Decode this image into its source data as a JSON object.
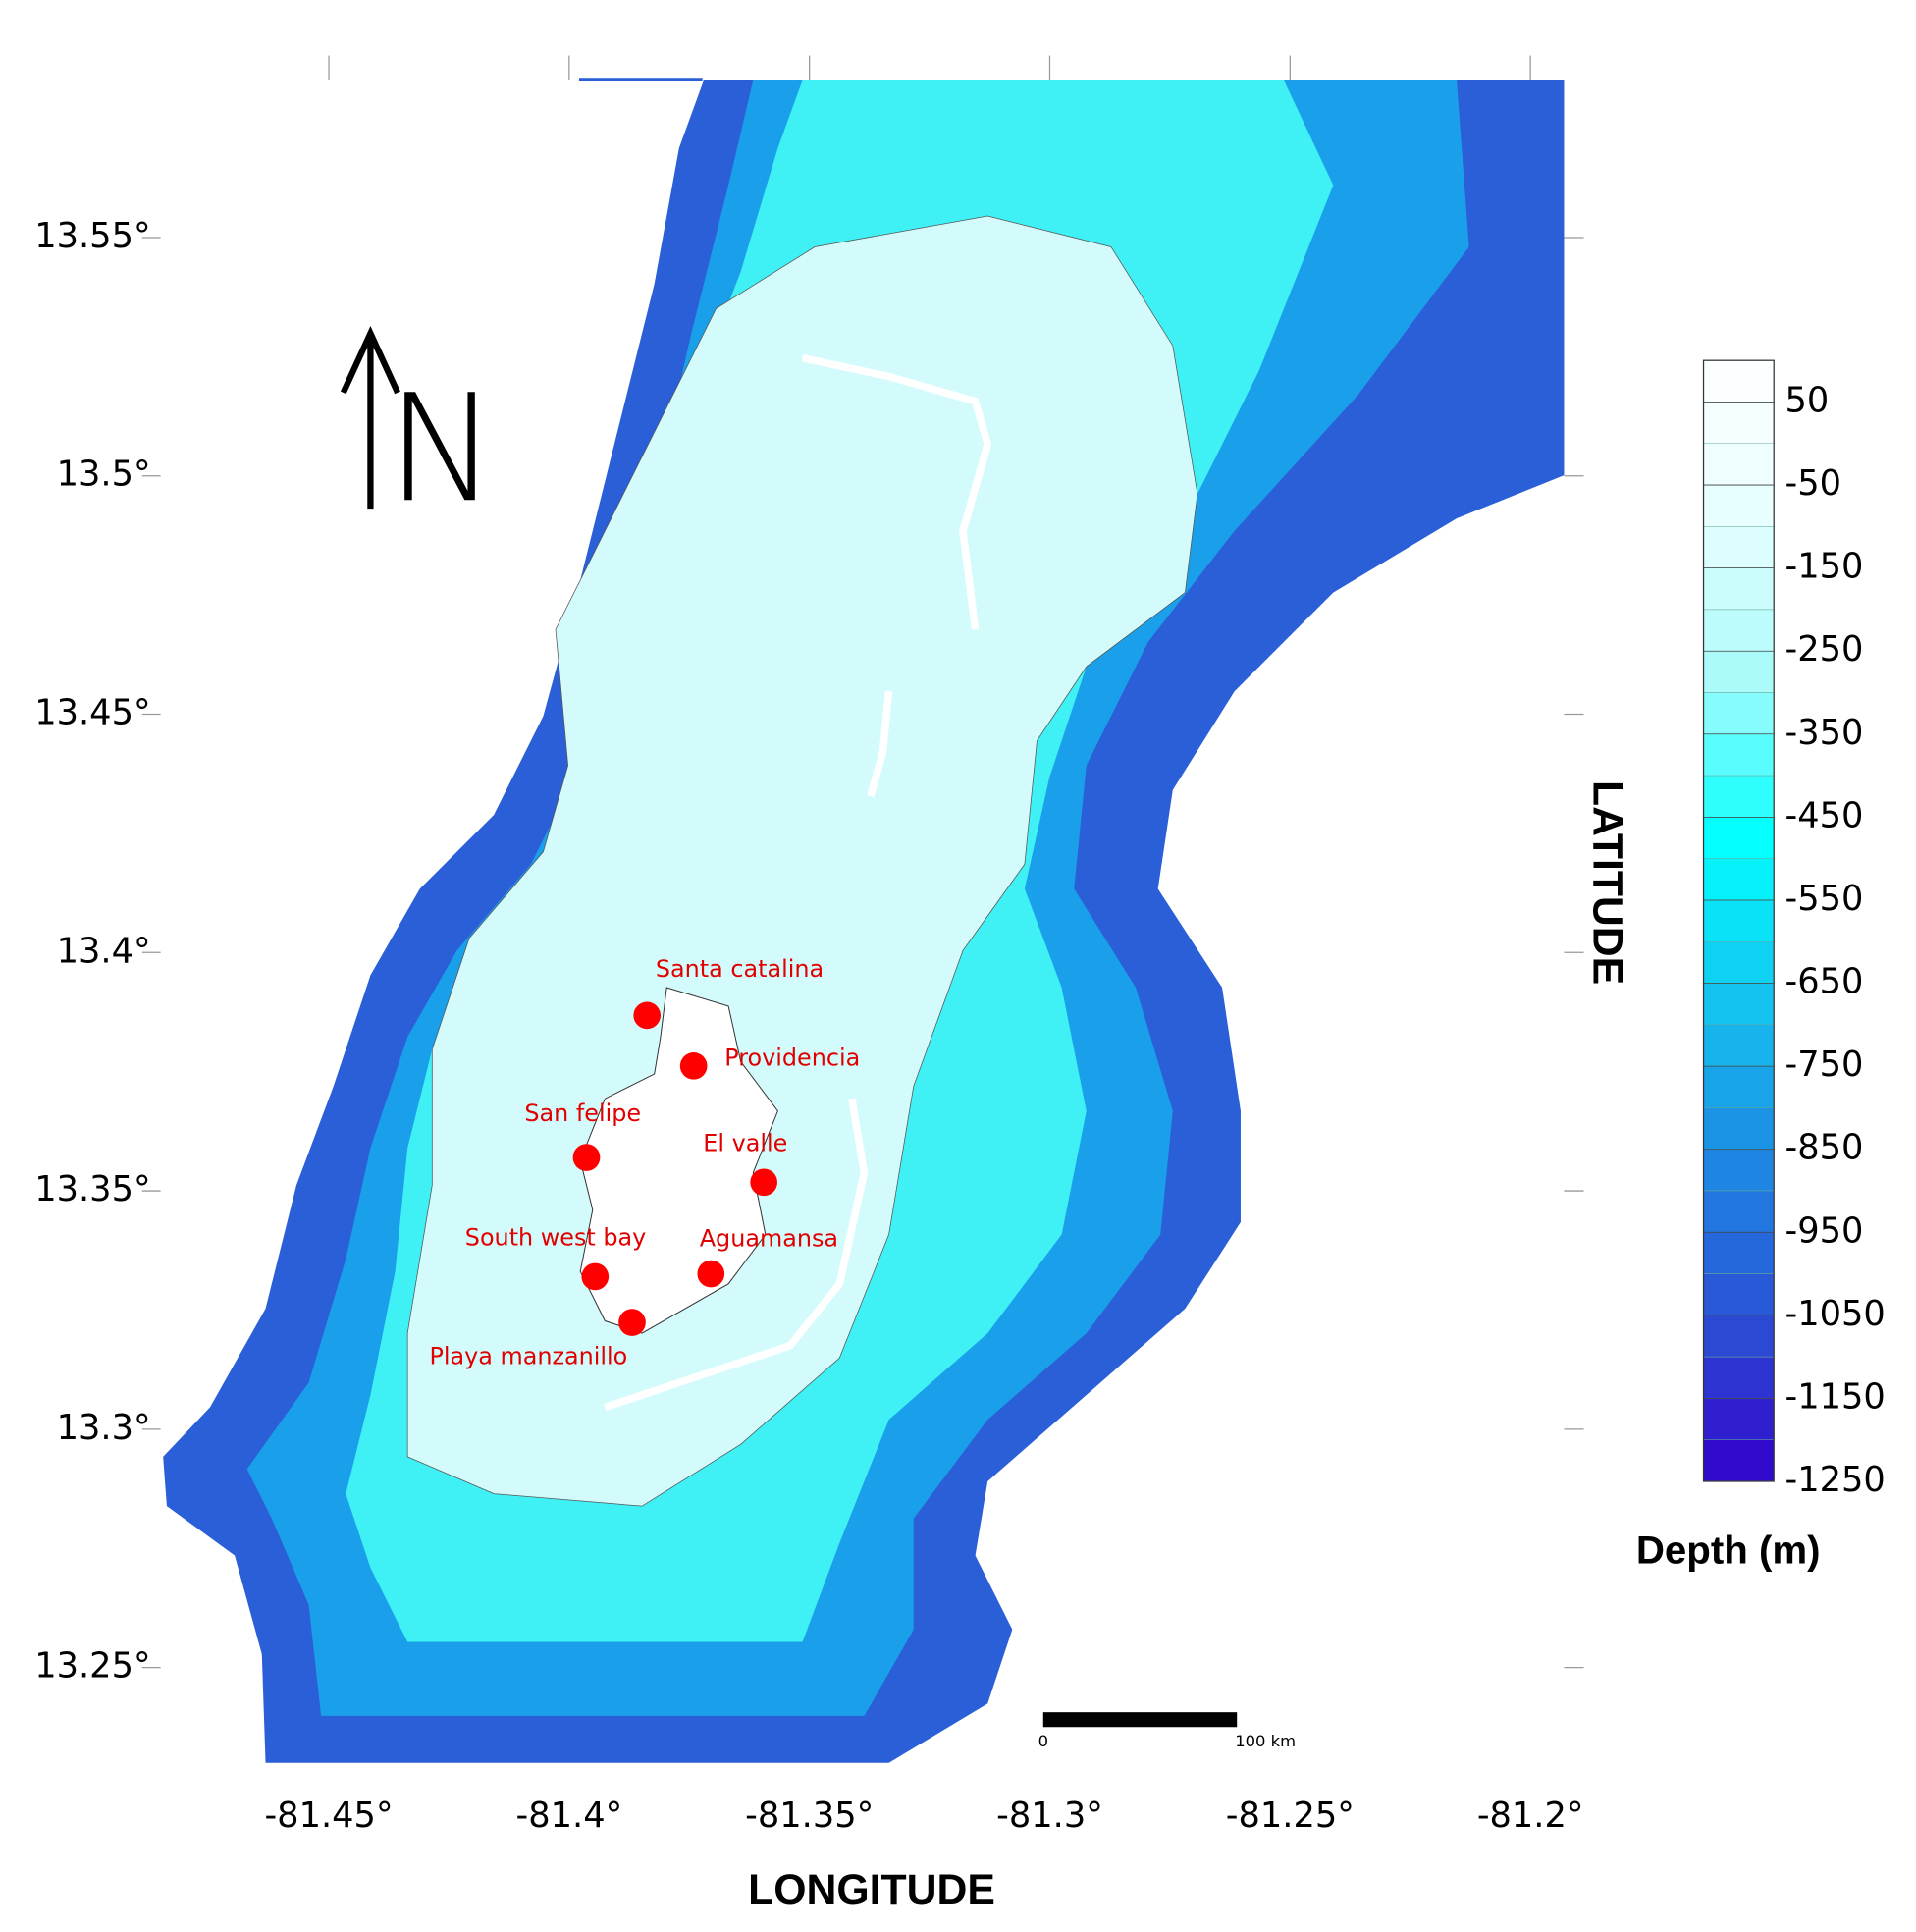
{
  "map": {
    "xlim": [
      -81.485,
      -81.193
    ],
    "ylim": [
      13.23,
      13.583
    ],
    "xticks": [
      {
        "value": -81.45,
        "label": "-81.45°"
      },
      {
        "value": -81.4,
        "label": "-81.4°"
      },
      {
        "value": -81.35,
        "label": "-81.35°"
      },
      {
        "value": -81.3,
        "label": "-81.3°"
      },
      {
        "value": -81.25,
        "label": "-81.25°"
      },
      {
        "value": -81.2,
        "label": "-81.2°"
      }
    ],
    "yticks": [
      {
        "value": 13.55,
        "label": "13.55°"
      },
      {
        "value": 13.5,
        "label": "13.5°"
      },
      {
        "value": 13.45,
        "label": "13.45°"
      },
      {
        "value": 13.4,
        "label": "13.4°"
      },
      {
        "value": 13.35,
        "label": "13.35°"
      },
      {
        "value": 13.3,
        "label": "13.3°"
      },
      {
        "value": 13.25,
        "label": "13.25°"
      }
    ],
    "xlabel": "LONGITUDE",
    "ylabel": "LATITUDE",
    "north": "N",
    "scale_bar": [
      "0",
      "100 km"
    ],
    "places": [
      {
        "name": "Santa catalina",
        "lon": -81.3838,
        "lat": 13.3868
      },
      {
        "name": "Providencia",
        "lon": -81.3741,
        "lat": 13.3762
      },
      {
        "name": "San felipe",
        "lon": -81.3964,
        "lat": 13.357
      },
      {
        "name": "El valle",
        "lon": -81.3595,
        "lat": 13.3518
      },
      {
        "name": "South west bay",
        "lon": -81.3946,
        "lat": 13.332
      },
      {
        "name": "Aguamansa",
        "lon": -81.3705,
        "lat": 13.3326
      },
      {
        "name": "Playa manzanillo",
        "lon": -81.3869,
        "lat": 13.3224
      }
    ],
    "place_color": "#ff0000",
    "colorbar": {
      "title": "Depth (m)",
      "lim": [
        -1250,
        100
      ],
      "step": 50,
      "ticks": [
        50,
        -50,
        -150,
        -250,
        -350,
        -450,
        -550,
        -650,
        -750,
        -850,
        -950,
        -1050,
        -1150,
        -1250
      ],
      "colors": [
        "#ffffff",
        "#e6ffff",
        "#a8fbfb",
        "#00ffff",
        "#14c4ef",
        "#1e88e4",
        "#2a50d4",
        "#3300cc"
      ]
    }
  }
}
